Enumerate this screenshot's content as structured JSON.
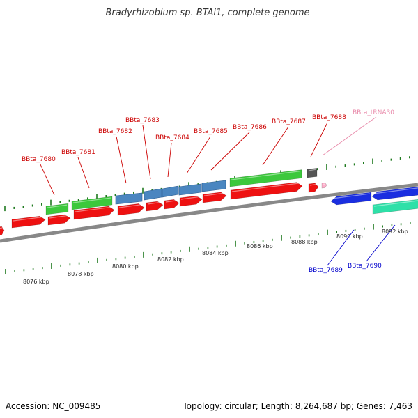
{
  "title": "Bradyrhizobium sp. BTAi1, complete genome",
  "footer": {
    "accession": "Accession: NC_009485",
    "summary": "Topology: circular; Length: 8,264,687 bp; Genes: 7,463"
  },
  "colors": {
    "backbone": "#888888",
    "tick": "#1f7a1f",
    "red": "#ee1111",
    "green": "#3cc83c",
    "steel": "#4a86c0",
    "blue": "#1a2ee0",
    "teal": "#2ee0a8",
    "gray": "#555555",
    "trna": "#ffb0cc",
    "label_red": "#cc0000",
    "label_blue": "#0000cc",
    "label_pink": "#e88aaa"
  },
  "scale_labels": [
    "8076 kbp",
    "8078 kbp",
    "8080 kbp",
    "8082 kbp",
    "8084 kbp",
    "8086 kbp",
    "8088 kbp",
    "8090 kbp",
    "8092 kbp"
  ],
  "gene_labels": [
    {
      "name": "BBta_7680",
      "color": "label_red"
    },
    {
      "name": "BBta_7681",
      "color": "label_red"
    },
    {
      "name": "BBta_7682",
      "color": "label_red"
    },
    {
      "name": "BBta_7683",
      "color": "label_red"
    },
    {
      "name": "BBta_7684",
      "color": "label_red"
    },
    {
      "name": "BBta_7685",
      "color": "label_red"
    },
    {
      "name": "BBta_7686",
      "color": "label_red"
    },
    {
      "name": "BBta_7687",
      "color": "label_red"
    },
    {
      "name": "BBta_7688",
      "color": "label_red"
    },
    {
      "name": "BBta_tRNA30",
      "color": "label_pink"
    },
    {
      "name": "BBta_7689",
      "color": "label_blue"
    },
    {
      "name": "BBta_7690",
      "color": "label_blue"
    }
  ]
}
